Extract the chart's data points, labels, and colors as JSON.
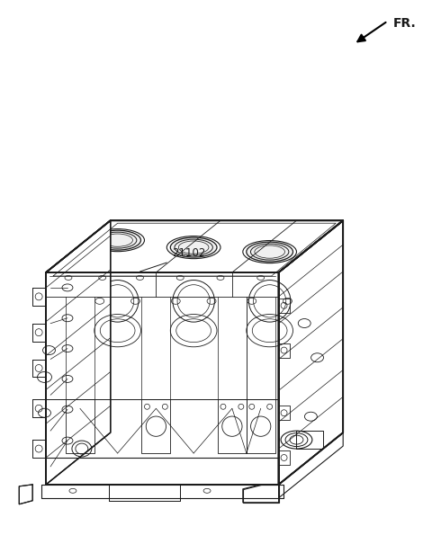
{
  "bg_color": "#ffffff",
  "line_color": "#1a1a1a",
  "fig_width": 4.8,
  "fig_height": 5.95,
  "dpi": 100,
  "fr_label": "FR.",
  "part_number": "21102",
  "part_number_fontsize": 8.5
}
